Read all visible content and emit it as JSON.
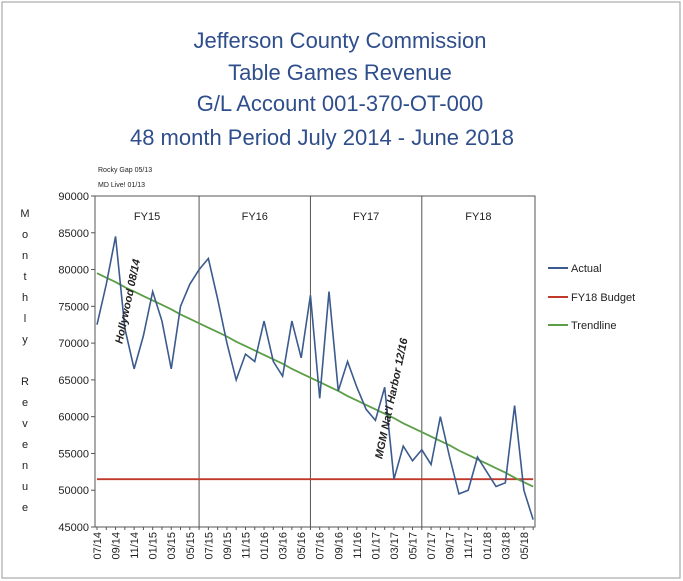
{
  "chart_data": {
    "type": "line",
    "title": [
      "Jefferson County Commission",
      "Table Games Revenue",
      "G/L Account 001-370-OT-000",
      "48 month Period July 2014 - June 2018"
    ],
    "y_label": "Monthly Revenue",
    "notes": [
      "Rocky Gap 05/13",
      "MD Live! 01/13"
    ],
    "annotations": [
      {
        "text": "Hollywood 08/14",
        "index": 1
      },
      {
        "text": "MGM Nat'l Harbor 12/16",
        "index": 29
      }
    ],
    "fiscal_years": [
      "FY15",
      "FY16",
      "FY17",
      "FY18"
    ],
    "categories": [
      "07/14",
      null,
      "09/14",
      null,
      "11/14",
      null,
      "01/15",
      null,
      "03/15",
      null,
      "05/15",
      null,
      "07/15",
      null,
      "09/15",
      null,
      "11/15",
      null,
      "01/16",
      null,
      "03/16",
      null,
      "05/16",
      null,
      "07/16",
      null,
      "09/16",
      null,
      "11/16",
      null,
      "01/17",
      null,
      "03/17",
      null,
      "05/17",
      null,
      "07/17",
      null,
      "09/17",
      null,
      "11/17",
      null,
      "01/18",
      null,
      "03/18",
      null,
      "05/18",
      null
    ],
    "series": [
      {
        "name": "Actual",
        "color": "#3b5b8e",
        "values": [
          72500,
          78000,
          84500,
          72000,
          66500,
          71000,
          77000,
          73000,
          66500,
          75000,
          78000,
          80000,
          81500,
          76000,
          70000,
          65000,
          68500,
          67500,
          73000,
          67500,
          65500,
          73000,
          68000,
          76500,
          62500,
          77000,
          63500,
          67500,
          64000,
          61000,
          59500,
          64000,
          51500,
          56000,
          54000,
          55500,
          53500,
          60000,
          54500,
          49500,
          50000,
          54500,
          52500,
          50500,
          51000,
          61500,
          50000,
          46000
        ]
      },
      {
        "name": "FY18 Budget",
        "color": "#c0392b",
        "values": [
          51500,
          51500,
          51500,
          51500,
          51500,
          51500,
          51500,
          51500,
          51500,
          51500,
          51500,
          51500,
          51500,
          51500,
          51500,
          51500,
          51500,
          51500,
          51500,
          51500,
          51500,
          51500,
          51500,
          51500,
          51500,
          51500,
          51500,
          51500,
          51500,
          51500,
          51500,
          51500,
          51500,
          51500,
          51500,
          51500,
          51500,
          51500,
          51500,
          51500,
          51500,
          51500,
          51500,
          51500,
          51500,
          51500,
          51500,
          51500
        ]
      },
      {
        "name": "Trendline",
        "color": "#5c9e46",
        "values": [
          79500,
          78900,
          78300,
          77600,
          77000,
          76400,
          75800,
          75200,
          74600,
          73900,
          73300,
          72700,
          72100,
          71500,
          70900,
          70200,
          69600,
          69000,
          68400,
          67800,
          67200,
          66500,
          65900,
          65300,
          64700,
          64100,
          63500,
          62800,
          62200,
          61600,
          61000,
          60400,
          59800,
          59100,
          58500,
          57900,
          57300,
          56700,
          56100,
          55400,
          54800,
          54200,
          53600,
          53000,
          52400,
          51700,
          51100,
          50500
        ]
      }
    ],
    "ylim": [
      45000,
      90000
    ],
    "yticks": [
      45000,
      50000,
      55000,
      60000,
      65000,
      70000,
      75000,
      80000,
      85000,
      90000
    ],
    "legend": "right"
  }
}
